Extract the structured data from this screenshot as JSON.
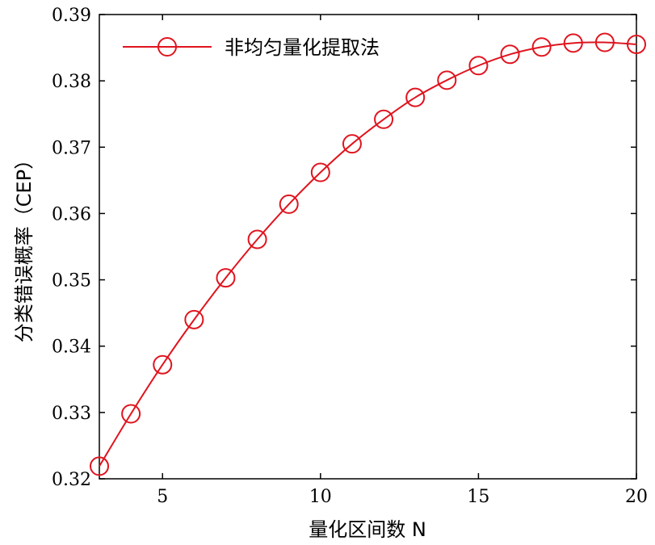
{
  "chart_data": {
    "type": "line",
    "xlabel": "量化区间数 N",
    "ylabel": "分类错误概率（CEP）",
    "xlim": [
      3,
      20
    ],
    "ylim": [
      0.32,
      0.39
    ],
    "xticks": [
      5,
      10,
      15,
      20
    ],
    "yticks": [
      0.32,
      0.33,
      0.34,
      0.35,
      0.36,
      0.37,
      0.38,
      0.39
    ],
    "xtick_labels": [
      "5",
      "10",
      "15",
      "20"
    ],
    "ytick_labels": [
      "0.32",
      "0.33",
      "0.34",
      "0.35",
      "0.36",
      "0.37",
      "0.38",
      "0.39"
    ],
    "grid": false,
    "legend_position": "top-left",
    "series": [
      {
        "name": "非均匀量化提取法",
        "color": "#e0141e",
        "marker": "circle-open",
        "x": [
          3,
          4,
          5,
          6,
          7,
          8,
          9,
          10,
          11,
          12,
          13,
          14,
          15,
          16,
          17,
          18,
          19,
          20
        ],
        "y": [
          0.3219,
          0.3298,
          0.3372,
          0.344,
          0.3503,
          0.3561,
          0.3614,
          0.3662,
          0.3705,
          0.3742,
          0.3775,
          0.3801,
          0.3823,
          0.384,
          0.3851,
          0.3857,
          0.3858,
          0.3855
        ]
      }
    ]
  }
}
